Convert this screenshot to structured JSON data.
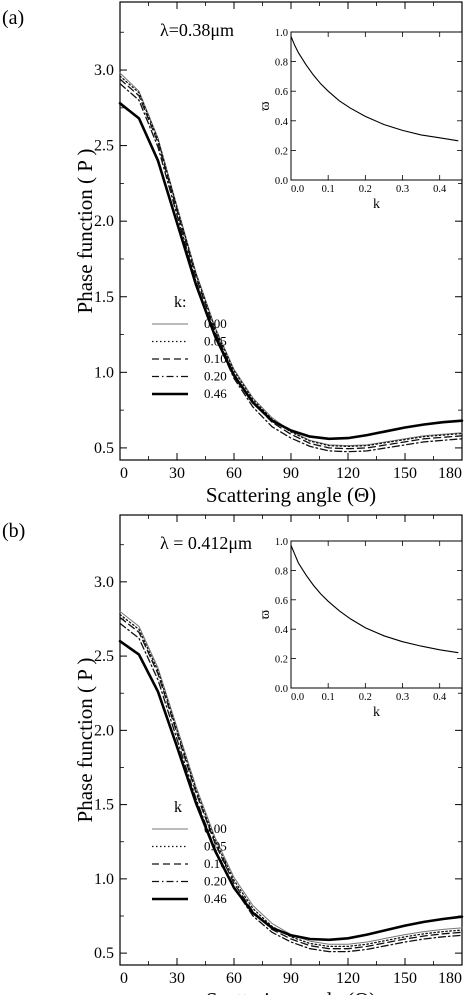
{
  "chart_data": [
    {
      "type": "line",
      "panel_label": "(a)",
      "annotation": "λ=0.38μm",
      "xlabel": "Scattering angle  (Θ)",
      "ylabel": "Phase function ( P )",
      "xlim": [
        0,
        180
      ],
      "ylim": [
        0.42,
        3.45
      ],
      "xticks": [
        "0",
        "30",
        "60",
        "90",
        "120",
        "150",
        "180"
      ],
      "yticks": [
        "0.5",
        "1.0",
        "1.5",
        "2.0",
        "2.5",
        "3.0"
      ],
      "legend_title": "k:",
      "legend_position": "lower-left",
      "series": [
        {
          "name": "0.00",
          "style": "thin-solid",
          "x": [
            0,
            10,
            20,
            30,
            40,
            50,
            60,
            70,
            80,
            90,
            100,
            110,
            120,
            130,
            140,
            150,
            160,
            170,
            180
          ],
          "y": [
            2.98,
            2.86,
            2.55,
            2.1,
            1.66,
            1.3,
            1.02,
            0.83,
            0.7,
            0.61,
            0.55,
            0.52,
            0.515,
            0.52,
            0.54,
            0.56,
            0.58,
            0.59,
            0.6
          ]
        },
        {
          "name": "0.05",
          "style": "dotted",
          "x": [
            0,
            10,
            20,
            30,
            40,
            50,
            60,
            70,
            80,
            90,
            100,
            110,
            120,
            130,
            140,
            150,
            160,
            170,
            180
          ],
          "y": [
            2.96,
            2.85,
            2.54,
            2.09,
            1.65,
            1.29,
            1.01,
            0.82,
            0.69,
            0.605,
            0.545,
            0.515,
            0.51,
            0.515,
            0.535,
            0.555,
            0.575,
            0.585,
            0.595
          ]
        },
        {
          "name": "0.10",
          "style": "dashed",
          "x": [
            0,
            10,
            20,
            30,
            40,
            50,
            60,
            70,
            80,
            90,
            100,
            110,
            120,
            130,
            140,
            150,
            160,
            170,
            180
          ],
          "y": [
            2.94,
            2.83,
            2.52,
            2.07,
            1.63,
            1.27,
            0.99,
            0.8,
            0.67,
            0.59,
            0.53,
            0.5,
            0.495,
            0.5,
            0.52,
            0.54,
            0.56,
            0.57,
            0.58
          ]
        },
        {
          "name": "0.20",
          "style": "dash-dot",
          "x": [
            0,
            10,
            20,
            30,
            40,
            50,
            60,
            70,
            80,
            90,
            100,
            110,
            120,
            130,
            140,
            150,
            160,
            170,
            180
          ],
          "y": [
            2.91,
            2.8,
            2.49,
            2.04,
            1.6,
            1.24,
            0.96,
            0.77,
            0.64,
            0.565,
            0.51,
            0.48,
            0.475,
            0.48,
            0.5,
            0.52,
            0.54,
            0.55,
            0.56
          ]
        },
        {
          "name": "0.46",
          "style": "thick-solid",
          "x": [
            0,
            10,
            20,
            30,
            40,
            50,
            60,
            70,
            80,
            90,
            100,
            110,
            120,
            130,
            140,
            150,
            160,
            170,
            180
          ],
          "y": [
            2.78,
            2.68,
            2.4,
            1.99,
            1.58,
            1.24,
            0.98,
            0.8,
            0.68,
            0.615,
            0.575,
            0.56,
            0.565,
            0.585,
            0.61,
            0.635,
            0.655,
            0.67,
            0.68
          ]
        }
      ],
      "inset": {
        "type": "line",
        "xlabel": "k",
        "ylabel": "ϖ",
        "xlim": [
          0,
          0.46
        ],
        "ylim": [
          0,
          1.0
        ],
        "xticks": [
          "0.0",
          "0.1",
          "0.2",
          "0.3",
          "0.4"
        ],
        "yticks": [
          "0.0",
          "0.2",
          "0.4",
          "0.6",
          "0.8",
          "1.0"
        ],
        "x": [
          0,
          0.01,
          0.02,
          0.04,
          0.06,
          0.08,
          0.1,
          0.13,
          0.16,
          0.2,
          0.25,
          0.3,
          0.35,
          0.4,
          0.45
        ],
        "y": [
          0.97,
          0.91,
          0.86,
          0.78,
          0.71,
          0.65,
          0.6,
          0.535,
          0.485,
          0.43,
          0.375,
          0.335,
          0.305,
          0.285,
          0.265
        ]
      }
    },
    {
      "type": "line",
      "panel_label": "(b)",
      "annotation": "λ = 0.412μm",
      "xlabel": "Scattering angle  (Θ)",
      "ylabel": "Phase function ( P )",
      "xlim": [
        0,
        180
      ],
      "ylim": [
        0.42,
        3.45
      ],
      "xticks": [
        "0",
        "30",
        "60",
        "90",
        "120",
        "150",
        "180"
      ],
      "yticks": [
        "0.5",
        "1.0",
        "1.5",
        "2.0",
        "2.5",
        "3.0"
      ],
      "legend_title": "k",
      "legend_position": "lower-left",
      "series": [
        {
          "name": "0.00",
          "style": "thin-solid",
          "x": [
            0,
            10,
            20,
            30,
            40,
            50,
            60,
            70,
            80,
            90,
            100,
            110,
            120,
            130,
            140,
            150,
            160,
            170,
            180
          ],
          "y": [
            2.8,
            2.7,
            2.42,
            2.02,
            1.62,
            1.28,
            1.01,
            0.82,
            0.7,
            0.625,
            0.58,
            0.56,
            0.56,
            0.575,
            0.6,
            0.625,
            0.645,
            0.66,
            0.67
          ]
        },
        {
          "name": "0.05",
          "style": "dotted",
          "x": [
            0,
            10,
            20,
            30,
            40,
            50,
            60,
            70,
            80,
            90,
            100,
            110,
            120,
            130,
            140,
            150,
            160,
            170,
            180
          ],
          "y": [
            2.78,
            2.68,
            2.4,
            2.0,
            1.6,
            1.26,
            0.99,
            0.8,
            0.68,
            0.61,
            0.565,
            0.545,
            0.545,
            0.56,
            0.585,
            0.61,
            0.63,
            0.645,
            0.655
          ]
        },
        {
          "name": "0.10",
          "style": "dashed",
          "x": [
            0,
            10,
            20,
            30,
            40,
            50,
            60,
            70,
            80,
            90,
            100,
            110,
            120,
            130,
            140,
            150,
            160,
            170,
            180
          ],
          "y": [
            2.76,
            2.66,
            2.38,
            1.98,
            1.58,
            1.24,
            0.97,
            0.78,
            0.66,
            0.595,
            0.55,
            0.53,
            0.53,
            0.545,
            0.57,
            0.595,
            0.615,
            0.63,
            0.64
          ]
        },
        {
          "name": "0.20",
          "style": "dash-dot",
          "x": [
            0,
            10,
            20,
            30,
            40,
            50,
            60,
            70,
            80,
            90,
            100,
            110,
            120,
            130,
            140,
            150,
            160,
            170,
            180
          ],
          "y": [
            2.72,
            2.62,
            2.34,
            1.94,
            1.54,
            1.2,
            0.94,
            0.75,
            0.64,
            0.575,
            0.53,
            0.51,
            0.51,
            0.525,
            0.55,
            0.575,
            0.595,
            0.61,
            0.62
          ]
        },
        {
          "name": "0.46",
          "style": "thick-solid",
          "x": [
            0,
            10,
            20,
            30,
            40,
            50,
            60,
            70,
            80,
            90,
            100,
            110,
            120,
            130,
            140,
            150,
            160,
            170,
            180
          ],
          "y": [
            2.6,
            2.51,
            2.26,
            1.89,
            1.51,
            1.19,
            0.94,
            0.77,
            0.67,
            0.62,
            0.595,
            0.59,
            0.6,
            0.625,
            0.655,
            0.685,
            0.71,
            0.73,
            0.745
          ]
        }
      ],
      "inset": {
        "type": "line",
        "xlabel": "k",
        "ylabel": "ϖ",
        "xlim": [
          0,
          0.46
        ],
        "ylim": [
          0,
          1.0
        ],
        "xticks": [
          "0.0",
          "0.1",
          "0.2",
          "0.3",
          "0.4"
        ],
        "yticks": [
          "0.0",
          "0.2",
          "0.4",
          "0.6",
          "0.8",
          "1.0"
        ],
        "x": [
          0,
          0.01,
          0.02,
          0.04,
          0.06,
          0.08,
          0.1,
          0.13,
          0.16,
          0.2,
          0.25,
          0.3,
          0.35,
          0.4,
          0.45
        ],
        "y": [
          0.97,
          0.91,
          0.85,
          0.77,
          0.7,
          0.64,
          0.59,
          0.525,
          0.47,
          0.41,
          0.355,
          0.315,
          0.285,
          0.26,
          0.24
        ]
      }
    }
  ]
}
